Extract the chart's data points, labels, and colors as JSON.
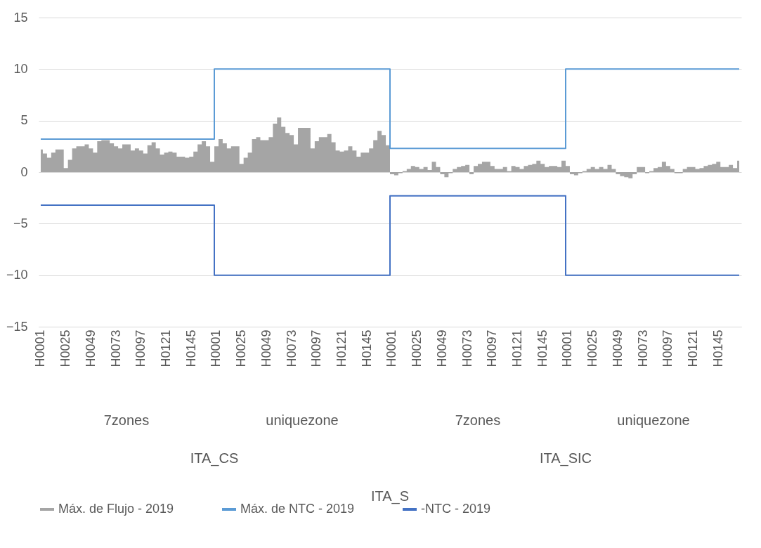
{
  "chart_data": {
    "type": "area",
    "categories": [
      "H0001",
      null,
      null,
      null,
      null,
      null,
      "H0025",
      null,
      null,
      null,
      null,
      null,
      "H0049",
      null,
      null,
      null,
      null,
      null,
      "H0073",
      null,
      null,
      null,
      null,
      null,
      "H0097",
      null,
      null,
      null,
      null,
      null,
      "H0121",
      null,
      null,
      null,
      null,
      null,
      "H0145",
      null,
      null,
      null,
      null,
      null,
      "H0001",
      null,
      null,
      null,
      null,
      null,
      "H0025",
      null,
      null,
      null,
      null,
      null,
      "H0049",
      null,
      null,
      null,
      null,
      null,
      "H0073",
      null,
      null,
      null,
      null,
      null,
      "H0097",
      null,
      null,
      null,
      null,
      null,
      "H0121",
      null,
      null,
      null,
      null,
      null,
      "H0145",
      null,
      null,
      null,
      null,
      null,
      "H0001",
      null,
      null,
      null,
      null,
      null,
      "H0025",
      null,
      null,
      null,
      null,
      null,
      "H0049",
      null,
      null,
      null,
      null,
      null,
      "H0073",
      null,
      null,
      null,
      null,
      null,
      "H0097",
      null,
      null,
      null,
      null,
      null,
      "H0121",
      null,
      null,
      null,
      null,
      null,
      "H0145",
      null,
      null,
      null,
      null,
      null,
      "H0001",
      null,
      null,
      null,
      null,
      null,
      "H0025",
      null,
      null,
      null,
      null,
      null,
      "H0049",
      null,
      null,
      null,
      null,
      null,
      "H0073",
      null,
      null,
      null,
      null,
      null,
      "H0097",
      null,
      null,
      null,
      null,
      null,
      "H0121",
      null,
      null,
      null,
      null,
      null,
      "H0145",
      null,
      null,
      null,
      null,
      null
    ],
    "series": [
      {
        "name": "Máx. de Flujo - 2019",
        "type": "area",
        "color": "#a5a5a5",
        "values": [
          2.2,
          1.8,
          1.4,
          1.9,
          2.2,
          2.2,
          0.4,
          1.2,
          2.3,
          2.5,
          2.5,
          2.7,
          2.3,
          1.9,
          3.0,
          3.1,
          3.1,
          2.8,
          2.5,
          2.3,
          2.7,
          2.7,
          2.1,
          2.3,
          2.1,
          1.8,
          2.6,
          2.9,
          2.3,
          1.7,
          1.9,
          2.0,
          1.9,
          1.5,
          1.5,
          1.4,
          1.5,
          2.0,
          2.7,
          3.0,
          2.5,
          1.0,
          2.5,
          3.2,
          2.8,
          2.3,
          2.5,
          2.5,
          0.8,
          1.4,
          1.9,
          3.2,
          3.4,
          3.1,
          3.1,
          3.4,
          4.7,
          5.3,
          4.4,
          3.8,
          3.6,
          2.7,
          4.3,
          4.3,
          4.3,
          2.3,
          3.0,
          3.4,
          3.4,
          3.7,
          2.9,
          2.1,
          2.0,
          2.1,
          2.5,
          2.1,
          1.5,
          1.9,
          1.9,
          2.3,
          3.1,
          4.0,
          3.6,
          2.6,
          -0.2,
          -0.3,
          -0.1,
          0.1,
          0.3,
          0.6,
          0.5,
          0.3,
          0.5,
          0.2,
          1.0,
          0.5,
          -0.2,
          -0.5,
          -0.1,
          0.3,
          0.5,
          0.6,
          0.7,
          -0.2,
          0.6,
          0.8,
          1.0,
          1.0,
          0.6,
          0.3,
          0.3,
          0.5,
          0.1,
          0.6,
          0.5,
          0.3,
          0.6,
          0.7,
          0.8,
          1.1,
          0.8,
          0.5,
          0.6,
          0.6,
          0.5,
          1.1,
          0.6,
          -0.2,
          -0.3,
          -0.1,
          0.1,
          0.3,
          0.5,
          0.3,
          0.5,
          0.3,
          0.7,
          0.3,
          -0.2,
          -0.4,
          -0.5,
          -0.6,
          -0.2,
          0.5,
          0.5,
          -0.1,
          0.1,
          0.4,
          0.5,
          1.0,
          0.6,
          0.3,
          -0.1,
          -0.1,
          0.3,
          0.5,
          0.5,
          0.3,
          0.4,
          0.6,
          0.7,
          0.8,
          1.0,
          0.5,
          0.5,
          0.7,
          0.4,
          1.1
        ]
      },
      {
        "name": "Máx. de NTC - 2019",
        "type": "step",
        "color": "#5b9bd5",
        "values": [
          3.2,
          3.2,
          3.2,
          3.2,
          3.2,
          3.2,
          3.2,
          3.2,
          3.2,
          3.2,
          3.2,
          3.2,
          3.2,
          3.2,
          3.2,
          3.2,
          3.2,
          3.2,
          3.2,
          3.2,
          3.2,
          3.2,
          3.2,
          3.2,
          3.2,
          3.2,
          3.2,
          3.2,
          3.2,
          3.2,
          3.2,
          3.2,
          3.2,
          3.2,
          3.2,
          3.2,
          3.2,
          3.2,
          3.2,
          3.2,
          3.2,
          3.2,
          10,
          10,
          10,
          10,
          10,
          10,
          10,
          10,
          10,
          10,
          10,
          10,
          10,
          10,
          10,
          10,
          10,
          10,
          10,
          10,
          10,
          10,
          10,
          10,
          10,
          10,
          10,
          10,
          10,
          10,
          10,
          10,
          10,
          10,
          10,
          10,
          10,
          10,
          10,
          10,
          10,
          10,
          2.3,
          2.3,
          2.3,
          2.3,
          2.3,
          2.3,
          2.3,
          2.3,
          2.3,
          2.3,
          2.3,
          2.3,
          2.3,
          2.3,
          2.3,
          2.3,
          2.3,
          2.3,
          2.3,
          2.3,
          2.3,
          2.3,
          2.3,
          2.3,
          2.3,
          2.3,
          2.3,
          2.3,
          2.3,
          2.3,
          2.3,
          2.3,
          2.3,
          2.3,
          2.3,
          2.3,
          2.3,
          2.3,
          2.3,
          2.3,
          2.3,
          2.3,
          10,
          10,
          10,
          10,
          10,
          10,
          10,
          10,
          10,
          10,
          10,
          10,
          10,
          10,
          10,
          10,
          10,
          10,
          10,
          10,
          10,
          10,
          10,
          10,
          10,
          10,
          10,
          10,
          10,
          10,
          10,
          10,
          10,
          10,
          10,
          10,
          10,
          10,
          10,
          10,
          10,
          10
        ]
      },
      {
        "name": "-NTC - 2019",
        "type": "step",
        "color": "#4472c4",
        "values": [
          -3.2,
          -3.2,
          -3.2,
          -3.2,
          -3.2,
          -3.2,
          -3.2,
          -3.2,
          -3.2,
          -3.2,
          -3.2,
          -3.2,
          -3.2,
          -3.2,
          -3.2,
          -3.2,
          -3.2,
          -3.2,
          -3.2,
          -3.2,
          -3.2,
          -3.2,
          -3.2,
          -3.2,
          -3.2,
          -3.2,
          -3.2,
          -3.2,
          -3.2,
          -3.2,
          -3.2,
          -3.2,
          -3.2,
          -3.2,
          -3.2,
          -3.2,
          -3.2,
          -3.2,
          -3.2,
          -3.2,
          -3.2,
          -3.2,
          -10,
          -10,
          -10,
          -10,
          -10,
          -10,
          -10,
          -10,
          -10,
          -10,
          -10,
          -10,
          -10,
          -10,
          -10,
          -10,
          -10,
          -10,
          -10,
          -10,
          -10,
          -10,
          -10,
          -10,
          -10,
          -10,
          -10,
          -10,
          -10,
          -10,
          -10,
          -10,
          -10,
          -10,
          -10,
          -10,
          -10,
          -10,
          -10,
          -10,
          -10,
          -10,
          -2.3,
          -2.3,
          -2.3,
          -2.3,
          -2.3,
          -2.3,
          -2.3,
          -2.3,
          -2.3,
          -2.3,
          -2.3,
          -2.3,
          -2.3,
          -2.3,
          -2.3,
          -2.3,
          -2.3,
          -2.3,
          -2.3,
          -2.3,
          -2.3,
          -2.3,
          -2.3,
          -2.3,
          -2.3,
          -2.3,
          -2.3,
          -2.3,
          -2.3,
          -2.3,
          -2.3,
          -2.3,
          -2.3,
          -2.3,
          -2.3,
          -2.3,
          -2.3,
          -2.3,
          -2.3,
          -2.3,
          -2.3,
          -2.3,
          -10,
          -10,
          -10,
          -10,
          -10,
          -10,
          -10,
          -10,
          -10,
          -10,
          -10,
          -10,
          -10,
          -10,
          -10,
          -10,
          -10,
          -10,
          -10,
          -10,
          -10,
          -10,
          -10,
          -10,
          -10,
          -10,
          -10,
          -10,
          -10,
          -10,
          -10,
          -10,
          -10,
          -10,
          -10,
          -10,
          -10,
          -10,
          -10,
          -10,
          -10,
          -10
        ]
      }
    ],
    "annotations": [
      "7zones",
      "uniquezone",
      "7zones",
      "uniquezone",
      "ITA_CS",
      "ITA_SIC",
      "ITA_S"
    ],
    "ylim": [
      -15,
      15
    ],
    "yticks": [
      -15,
      -10,
      -5,
      0,
      5,
      10,
      15
    ],
    "grid": "y",
    "legend": "bottom"
  }
}
